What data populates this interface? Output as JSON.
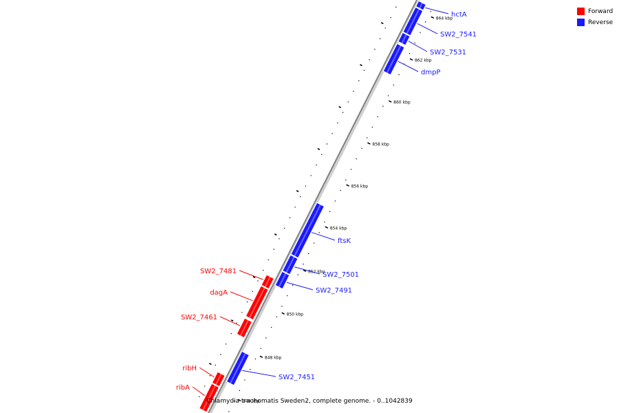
{
  "legend": {
    "forward": {
      "label": "Forward",
      "color": "#ff0000"
    },
    "reverse": {
      "label": "Reverse",
      "color": "#1a1aff"
    }
  },
  "caption": "Chlamydia trachomatis Sweden2, complete genome. - 0..1042839",
  "ticks": [
    "846 kbp",
    "848 kbp",
    "850 kbp",
    "852 kbp",
    "854 kbp",
    "856 kbp",
    "858 kbp",
    "860 kbp",
    "862 kbp",
    "864 kbp"
  ],
  "genes": [
    {
      "name": "hctA",
      "strand": "reverse"
    },
    {
      "name": "SW2_7541",
      "strand": "reverse"
    },
    {
      "name": "SW2_7531",
      "strand": "reverse"
    },
    {
      "name": "dmpP",
      "strand": "reverse"
    },
    {
      "name": "ftsK",
      "strand": "reverse"
    },
    {
      "name": "SW2_7501",
      "strand": "reverse"
    },
    {
      "name": "SW2_7491",
      "strand": "reverse"
    },
    {
      "name": "SW2_7451",
      "strand": "reverse"
    },
    {
      "name": "SW2_7481",
      "strand": "forward"
    },
    {
      "name": "dagA",
      "strand": "forward"
    },
    {
      "name": "SW2_7461",
      "strand": "forward"
    },
    {
      "name": "ribH",
      "strand": "forward"
    },
    {
      "name": "ribA",
      "strand": "forward"
    }
  ]
}
